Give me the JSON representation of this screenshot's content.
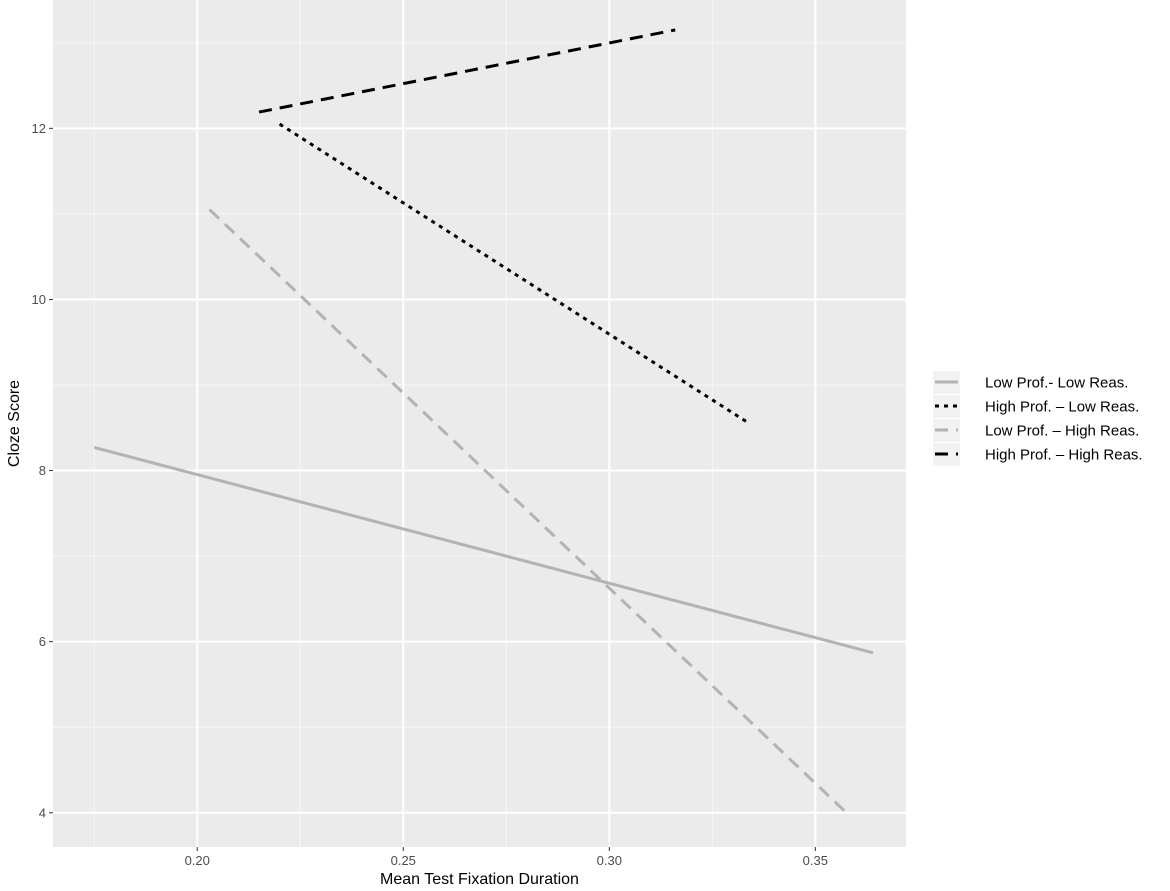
{
  "chart_data": {
    "type": "line",
    "title": "",
    "xlabel": "Mean Test Fixation Duration",
    "ylabel": "Cloze Score",
    "xlim": [
      0.165,
      0.372
    ],
    "ylim": [
      3.6,
      13.5
    ],
    "x_ticks": [
      0.2,
      0.25,
      0.3,
      0.35
    ],
    "x_tick_labels": [
      "0.20",
      "0.25",
      "0.30",
      "0.35"
    ],
    "y_ticks": [
      4,
      6,
      8,
      10,
      12
    ],
    "y_tick_labels": [
      "4",
      "6",
      "8",
      "10",
      "12"
    ],
    "grid": true,
    "legend_position": "right",
    "series": [
      {
        "name": "Low Prof.- Low Reas.",
        "color": "#b3b3b3",
        "dash": "solid",
        "x": [
          0.175,
          0.364
        ],
        "y": [
          8.27,
          5.87
        ]
      },
      {
        "name": "High Prof. – Low Reas.",
        "color": "#000000",
        "dash": "dotted",
        "x": [
          0.22,
          0.334
        ],
        "y": [
          12.05,
          8.55
        ]
      },
      {
        "name": "Low Prof. – High Reas.",
        "color": "#b3b3b3",
        "dash": "dashed",
        "x": [
          0.203,
          0.358
        ],
        "y": [
          11.05,
          3.98
        ]
      },
      {
        "name": "High Prof. – High Reas.",
        "color": "#000000",
        "dash": "dashed",
        "x": [
          0.215,
          0.316
        ],
        "y": [
          12.19,
          13.15
        ]
      }
    ]
  }
}
